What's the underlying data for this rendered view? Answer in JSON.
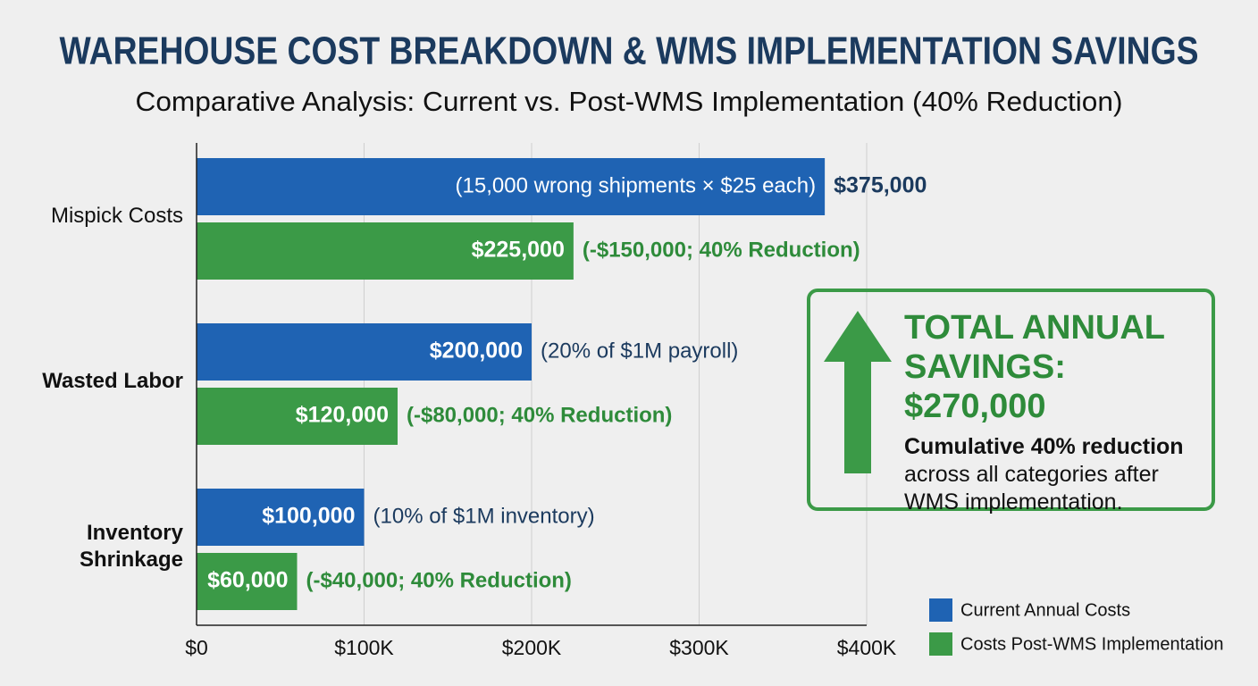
{
  "chart_data": {
    "type": "hbar",
    "title": "WAREHOUSE COST BREAKDOWN & WMS IMPLEMENTATION SAVINGS",
    "subtitle": "Comparative Analysis: Current vs. Post-WMS Implementation (40% Reduction)",
    "categories": [
      "Mispick Costs",
      "Wasted Labor",
      "Inventory Shrinkage"
    ],
    "series": [
      {
        "name": "Current Annual Costs",
        "color": "#1f63b3",
        "values": [
          375000,
          200000,
          100000
        ],
        "value_labels": [
          "$375,000",
          "$200,000",
          "$100,000"
        ],
        "notes": [
          "(15,000 wrong shipments × $25 each)",
          "(20% of $1M payroll)",
          "(10% of $1M inventory)"
        ]
      },
      {
        "name": "Costs Post-WMS Implementation",
        "color": "#3b9a47",
        "values": [
          225000,
          120000,
          60000
        ],
        "value_labels": [
          "$225,000",
          "$120,000",
          "$60,000"
        ],
        "notes": [
          "(-$150,000; 40% Reduction)",
          "(-$80,000; 40% Reduction)",
          "(-$40,000; 40% Reduction)"
        ]
      }
    ],
    "xlim": [
      0,
      400000
    ],
    "xticks": [
      {
        "value": 0,
        "label": "$0"
      },
      {
        "value": 100000,
        "label": "$100K"
      },
      {
        "value": 200000,
        "label": "$200K"
      },
      {
        "value": 300000,
        "label": "$300K"
      },
      {
        "value": 400000,
        "label": "$400K"
      }
    ],
    "grid": true,
    "callout": {
      "title": "TOTAL ANNUAL SAVINGS: $270,000",
      "lead": "Cumulative 40% reduction",
      "text": "across all categories after WMS implementation."
    }
  }
}
